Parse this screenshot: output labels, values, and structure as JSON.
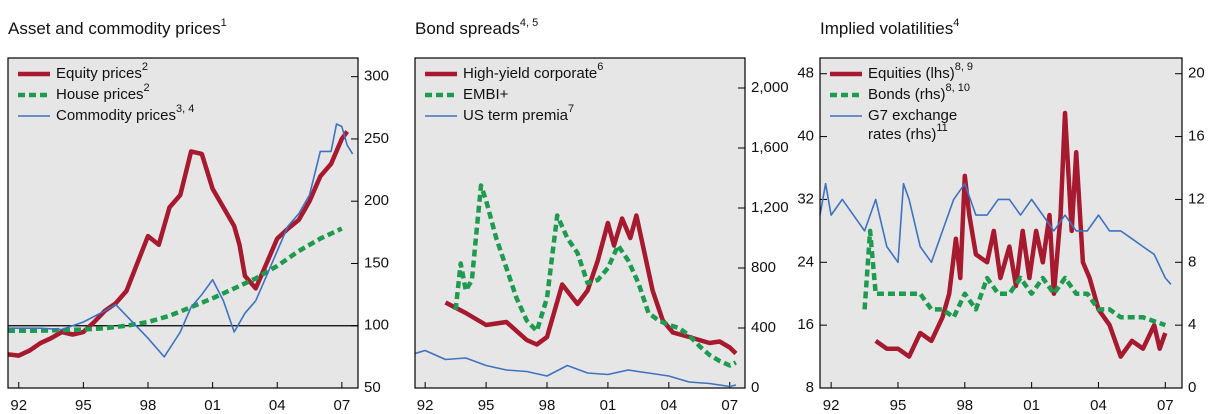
{
  "chart_data": [
    {
      "type": "line",
      "title": "Asset and commodity prices",
      "title_note": "1",
      "y_axis_side": "right",
      "xlim": [
        1991.5,
        2007.75
      ],
      "ylim": [
        50,
        315
      ],
      "yticks": [
        50,
        100,
        150,
        200,
        250,
        300
      ],
      "xticks": [
        {
          "value": 1992,
          "label": "92"
        },
        {
          "value": 1995,
          "label": "95"
        },
        {
          "value": 1998,
          "label": "98"
        },
        {
          "value": 2001,
          "label": "01"
        },
        {
          "value": 2004,
          "label": "04"
        },
        {
          "value": 2007,
          "label": "07"
        }
      ],
      "reference_line": 100,
      "series": [
        {
          "name": "Equity prices",
          "note": "2",
          "color": "#a6192e",
          "style": "thick",
          "x": [
            1991.5,
            1992,
            1992.5,
            1993,
            1993.5,
            1994,
            1994.5,
            1995,
            1995.5,
            1996,
            1996.5,
            1997,
            1997.5,
            1998,
            1998.5,
            1999,
            1999.5,
            2000,
            2000.5,
            2001,
            2001.5,
            2002,
            2002.25,
            2002.5,
            2003,
            2003.5,
            2004,
            2004.5,
            2005,
            2005.5,
            2006,
            2006.5,
            2007,
            2007.25
          ],
          "values": [
            77,
            76,
            80,
            86,
            90,
            95,
            93,
            95,
            103,
            112,
            118,
            128,
            150,
            172,
            165,
            195,
            205,
            240,
            238,
            210,
            195,
            180,
            165,
            140,
            130,
            150,
            170,
            178,
            185,
            200,
            220,
            230,
            250,
            256
          ]
        },
        {
          "name": "House prices",
          "note": "2",
          "color": "#1e9b4f",
          "style": "dashed",
          "x": [
            1991.5,
            1993,
            1995,
            1996,
            1997,
            1998,
            1999,
            2000,
            2001,
            2002,
            2003,
            2004,
            2005,
            2006,
            2007
          ],
          "values": [
            96,
            96,
            97,
            98,
            100,
            103,
            108,
            115,
            122,
            130,
            138,
            148,
            160,
            170,
            178
          ]
        },
        {
          "name": "Commodity prices",
          "note": "3, 4",
          "color": "#3f72c0",
          "style": "thin",
          "x": [
            1991.5,
            1993,
            1994,
            1995,
            1996,
            1996.5,
            1997,
            1998,
            1998.75,
            1999.5,
            2000,
            2000.5,
            2001,
            2001.5,
            2002,
            2002.5,
            2003,
            2003.5,
            2004,
            2004.5,
            2005,
            2005.5,
            2006,
            2006.5,
            2006.75,
            2007,
            2007.25,
            2007.5
          ],
          "values": [
            98,
            98,
            97,
            103,
            112,
            117,
            108,
            90,
            75,
            95,
            115,
            125,
            137,
            120,
            95,
            110,
            120,
            140,
            160,
            180,
            190,
            205,
            240,
            240,
            262,
            260,
            245,
            238
          ]
        }
      ]
    },
    {
      "type": "line",
      "title": "Bond spreads",
      "title_note": "4, 5",
      "y_axis_side": "right",
      "xlim": [
        1991.5,
        2007.75
      ],
      "ylim": [
        0,
        2200
      ],
      "yticks": [
        0,
        400,
        800,
        {
          "value": 1200,
          "label": "1,200"
        },
        {
          "value": 1600,
          "label": "1,600"
        },
        {
          "value": 2000,
          "label": "2,000"
        }
      ],
      "xticks": [
        {
          "value": 1992,
          "label": "92"
        },
        {
          "value": 1995,
          "label": "95"
        },
        {
          "value": 1998,
          "label": "98"
        },
        {
          "value": 2001,
          "label": "01"
        },
        {
          "value": 2004,
          "label": "04"
        },
        {
          "value": 2007,
          "label": "07"
        }
      ],
      "series": [
        {
          "name": "High-yield corporate",
          "note": "6",
          "color": "#a6192e",
          "style": "thick",
          "x": [
            1993,
            1994,
            1995,
            1996,
            1997,
            1997.5,
            1998,
            1998.75,
            1999.5,
            2000,
            2000.5,
            2001,
            2001.3,
            2001.7,
            2002.1,
            2002.4,
            2002.8,
            2003.2,
            2003.7,
            2004.2,
            2005,
            2005.5,
            2006,
            2006.5,
            2007,
            2007.3
          ],
          "values": [
            570,
            500,
            420,
            440,
            320,
            290,
            340,
            690,
            560,
            650,
            850,
            1100,
            950,
            1130,
            1000,
            1150,
            900,
            650,
            450,
            370,
            340,
            320,
            300,
            310,
            270,
            230
          ]
        },
        {
          "name": "EMBI+",
          "note": "",
          "color": "#1e9b4f",
          "style": "dashed",
          "x": [
            1993.5,
            1993.75,
            1994,
            1994.3,
            1994.5,
            1994.75,
            1995,
            1995.5,
            1996,
            1996.5,
            1997,
            1997.5,
            1998,
            1998.5,
            1999,
            1999.5,
            2000,
            2000.5,
            2001,
            2001.5,
            2002,
            2002.5,
            2003,
            2003.5,
            2004,
            2004.5,
            2005,
            2005.5,
            2006,
            2006.5,
            2007,
            2007.3
          ],
          "values": [
            520,
            830,
            650,
            720,
            1000,
            1350,
            1250,
            1000,
            800,
            600,
            450,
            380,
            600,
            1150,
            1000,
            900,
            700,
            720,
            800,
            950,
            850,
            700,
            500,
            450,
            420,
            400,
            350,
            280,
            220,
            180,
            150,
            170
          ]
        },
        {
          "name": "US term premia",
          "note": "7",
          "color": "#3f72c0",
          "style": "thin",
          "x": [
            1991.5,
            1992,
            1993,
            1994,
            1995,
            1996,
            1997,
            1998,
            1999,
            2000,
            2001,
            2002,
            2003,
            2004,
            2005,
            2006,
            2007,
            2007.3
          ],
          "values": [
            230,
            250,
            190,
            200,
            150,
            120,
            110,
            80,
            150,
            100,
            90,
            120,
            100,
            80,
            40,
            30,
            10,
            20
          ]
        }
      ]
    },
    {
      "type": "line",
      "title": "Implied volatilities",
      "title_note": "4",
      "y_axis_side": "both",
      "xlim": [
        1991.5,
        2007.75
      ],
      "ylim": [
        8,
        50
      ],
      "yticks": [
        8,
        16,
        24,
        32,
        40,
        48
      ],
      "y2lim": [
        0,
        21
      ],
      "y2ticks": [
        0,
        4,
        8,
        12,
        16,
        20
      ],
      "xticks": [
        {
          "value": 1992,
          "label": "92"
        },
        {
          "value": 1995,
          "label": "95"
        },
        {
          "value": 1998,
          "label": "98"
        },
        {
          "value": 2001,
          "label": "01"
        },
        {
          "value": 2004,
          "label": "04"
        },
        {
          "value": 2007,
          "label": "07"
        }
      ],
      "series": [
        {
          "name": "Equities (lhs)",
          "note": "8, 9",
          "color": "#a6192e",
          "style": "thick",
          "x": [
            1994,
            1994.5,
            1995,
            1995.5,
            1996,
            1996.5,
            1997,
            1997.3,
            1997.6,
            1997.8,
            1998,
            1998.2,
            1998.5,
            1999,
            1999.3,
            1999.6,
            2000,
            2000.3,
            2000.6,
            2000.9,
            2001.2,
            2001.5,
            2001.8,
            2002,
            2002.3,
            2002.5,
            2002.8,
            2003,
            2003.3,
            2003.6,
            2004,
            2004.5,
            2005,
            2005.5,
            2006,
            2006.5,
            2006.75,
            2007
          ],
          "values": [
            14,
            13,
            13,
            12,
            15,
            14,
            17,
            20,
            27,
            22,
            35,
            30,
            25,
            24,
            28,
            22,
            26,
            21,
            28,
            22,
            28,
            24,
            30,
            20,
            30,
            43,
            28,
            38,
            24,
            22,
            18,
            16,
            12,
            14,
            13,
            16,
            13,
            15
          ]
        },
        {
          "name": "Bonds (rhs)",
          "note": "8, 10",
          "color": "#1e9b4f",
          "style": "dashed",
          "axis": "y2",
          "x": [
            1993.5,
            1993.75,
            1994,
            1994.5,
            1995,
            1996,
            1996.5,
            1997,
            1997.5,
            1998,
            1998.5,
            1999,
            1999.5,
            2000,
            2000.5,
            2001,
            2001.5,
            2002,
            2002.5,
            2003,
            2003.5,
            2004,
            2004.5,
            2005,
            2006,
            2007
          ],
          "values": [
            5,
            10,
            6,
            6,
            6,
            6,
            5,
            5,
            4.5,
            6,
            5,
            7,
            6,
            6,
            7,
            6,
            7,
            6,
            7,
            6,
            6,
            5,
            5,
            4.5,
            4.5,
            4
          ]
        },
        {
          "name": [
            "G7 exchange",
            "rates (rhs)"
          ],
          "note": "11",
          "color": "#3f72c0",
          "style": "thin",
          "axis": "y2",
          "x": [
            1991.5,
            1991.75,
            1992,
            1992.5,
            1993,
            1993.5,
            1994,
            1994.5,
            1995,
            1995.25,
            1995.5,
            1996,
            1996.5,
            1997,
            1997.5,
            1998,
            1998.5,
            1999,
            1999.5,
            2000,
            2000.5,
            2001,
            2001.5,
            2002,
            2002.5,
            2003,
            2003.5,
            2004,
            2004.5,
            2005,
            2005.5,
            2006,
            2006.5,
            2007,
            2007.25
          ],
          "values": [
            11,
            13,
            11,
            12,
            11,
            10,
            12,
            9,
            8,
            13,
            12,
            9,
            8,
            10,
            12,
            13,
            11,
            11,
            12,
            12,
            11,
            12,
            11,
            10,
            11,
            10,
            10,
            11,
            10,
            10,
            9.5,
            9,
            8.5,
            7,
            6.6
          ]
        }
      ]
    }
  ]
}
